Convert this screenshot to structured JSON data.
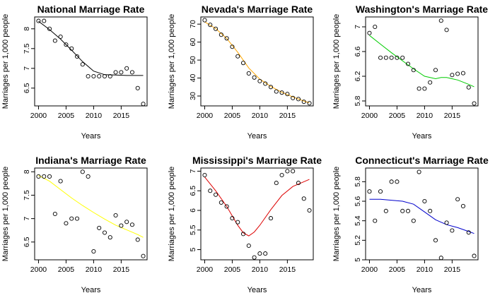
{
  "chart_data": [
    {
      "type": "scatter",
      "title": "National Marriage Rate",
      "xlabel": "Years",
      "ylabel": "Marriages per 1,000 people",
      "xlim": [
        1999.3,
        2019.7
      ],
      "ylim": [
        6.05,
        8.3
      ],
      "xticks": [
        2000,
        2005,
        2010,
        2015
      ],
      "yticks": [
        6.5,
        7.0,
        7.5,
        8.0
      ],
      "trend_color": "#000000",
      "x": [
        2000,
        2001,
        2002,
        2003,
        2004,
        2005,
        2006,
        2007,
        2008,
        2009,
        2010,
        2011,
        2012,
        2013,
        2014,
        2015,
        2016,
        2017,
        2018,
        2019
      ],
      "y": [
        8.2,
        8.2,
        8.0,
        7.7,
        7.8,
        7.6,
        7.5,
        7.3,
        7.1,
        6.8,
        6.8,
        6.8,
        6.8,
        6.8,
        6.9,
        6.9,
        7.0,
        6.9,
        6.5,
        6.1
      ],
      "trend": [
        [
          2000,
          8.19
        ],
        [
          2002,
          7.98
        ],
        [
          2004,
          7.74
        ],
        [
          2006,
          7.46
        ],
        [
          2008,
          7.17
        ],
        [
          2010,
          6.93
        ],
        [
          2012,
          6.84
        ],
        [
          2014,
          6.83
        ],
        [
          2016,
          6.82
        ],
        [
          2018,
          6.82
        ],
        [
          2019,
          6.82
        ]
      ]
    },
    {
      "type": "scatter",
      "title": "Nevada's Marriage Rate",
      "xlabel": "Years",
      "ylabel": "Marriages per 1,000 people",
      "xlim": [
        1999.3,
        2019.7
      ],
      "ylim": [
        24.5,
        74
      ],
      "xticks": [
        2000,
        2005,
        2010,
        2015
      ],
      "yticks": [
        30,
        40,
        50,
        60,
        70
      ],
      "trend_color": "#ffa500",
      "x": [
        2000,
        2001,
        2002,
        2003,
        2004,
        2005,
        2006,
        2007,
        2008,
        2009,
        2010,
        2011,
        2012,
        2013,
        2014,
        2015,
        2016,
        2017,
        2018,
        2019
      ],
      "y": [
        72.2,
        69.6,
        67.4,
        64.1,
        62.1,
        57.4,
        52.1,
        48.4,
        42.6,
        40.3,
        38.3,
        36.9,
        35.0,
        32.5,
        31.9,
        31.1,
        28.9,
        28.3,
        26.8,
        26.0
      ],
      "trend": [
        [
          2000,
          71.3
        ],
        [
          2002,
          67.5
        ],
        [
          2004,
          62.0
        ],
        [
          2006,
          54.3
        ],
        [
          2008,
          45.6
        ],
        [
          2010,
          39.4
        ],
        [
          2012,
          35.3
        ],
        [
          2014,
          32.1
        ],
        [
          2016,
          29.5
        ],
        [
          2018,
          27.2
        ],
        [
          2019,
          26.2
        ]
      ]
    },
    {
      "type": "scatter",
      "title": "Washington's Marriage Rate",
      "xlabel": "Years",
      "ylabel": "Marriages per 1,000 people",
      "xlim": [
        1999.3,
        2019.7
      ],
      "ylim": [
        5.72,
        7.16
      ],
      "xticks": [
        2000,
        2005,
        2010,
        2015
      ],
      "yticks": [
        5.8,
        6.2,
        6.6,
        7.0
      ],
      "trend_color": "#00cc00",
      "x": [
        2000,
        2001,
        2002,
        2003,
        2004,
        2005,
        2006,
        2007,
        2008,
        2009,
        2010,
        2011,
        2012,
        2013,
        2014,
        2015,
        2016,
        2017,
        2018,
        2019
      ],
      "y": [
        6.9,
        7.0,
        6.5,
        6.5,
        6.5,
        6.5,
        6.5,
        6.4,
        6.3,
        6.0,
        6.0,
        6.1,
        6.3,
        7.1,
        6.95,
        6.22,
        6.24,
        6.25,
        6.02,
        5.76
      ],
      "trend": [
        [
          2000,
          6.86
        ],
        [
          2002,
          6.72
        ],
        [
          2004,
          6.58
        ],
        [
          2006,
          6.45
        ],
        [
          2008,
          6.32
        ],
        [
          2010,
          6.2
        ],
        [
          2012,
          6.16
        ],
        [
          2013,
          6.18
        ],
        [
          2014,
          6.18
        ],
        [
          2016,
          6.14
        ],
        [
          2018,
          6.07
        ],
        [
          2019,
          6.03
        ]
      ]
    },
    {
      "type": "scatter",
      "title": "Indiana's Marriage Rate",
      "xlabel": "Years",
      "ylabel": "Marriages per 1,000 people",
      "xlim": [
        1999.3,
        2019.7
      ],
      "ylim": [
        6.12,
        8.08
      ],
      "xticks": [
        2000,
        2005,
        2010,
        2015
      ],
      "yticks": [
        6.5,
        7.0,
        7.5,
        8.0
      ],
      "trend_color": "#ffff00",
      "x": [
        2000,
        2001,
        2002,
        2003,
        2004,
        2005,
        2006,
        2007,
        2008,
        2009,
        2010,
        2011,
        2012,
        2013,
        2014,
        2015,
        2016,
        2017,
        2018,
        2019
      ],
      "y": [
        7.9,
        7.9,
        7.9,
        7.1,
        7.8,
        6.9,
        7.0,
        7.0,
        8.0,
        7.9,
        6.3,
        6.8,
        6.7,
        6.6,
        7.07,
        6.85,
        6.93,
        6.87,
        6.55,
        6.2
      ],
      "trend": [
        [
          2000,
          7.92
        ],
        [
          2002,
          7.8
        ],
        [
          2004,
          7.62
        ],
        [
          2006,
          7.44
        ],
        [
          2008,
          7.28
        ],
        [
          2010,
          7.13
        ],
        [
          2012,
          6.99
        ],
        [
          2014,
          6.86
        ],
        [
          2016,
          6.76
        ],
        [
          2018,
          6.66
        ],
        [
          2019,
          6.6
        ]
      ]
    },
    {
      "type": "scatter",
      "title": "Mississippi's Marriage Rate",
      "xlabel": "Years",
      "ylabel": "Marriages per 1,000 people",
      "xlim": [
        1999.3,
        2019.7
      ],
      "ylim": [
        4.74,
        7.08
      ],
      "xticks": [
        2000,
        2005,
        2010,
        2015
      ],
      "yticks": [
        5.0,
        5.5,
        6.0,
        6.5,
        7.0
      ],
      "trend_color": "#dd0000",
      "x": [
        2000,
        2001,
        2002,
        2003,
        2004,
        2005,
        2006,
        2007,
        2008,
        2009,
        2010,
        2011,
        2012,
        2013,
        2014,
        2015,
        2016,
        2017,
        2018,
        2019
      ],
      "y": [
        6.9,
        6.5,
        6.4,
        6.2,
        6.1,
        5.8,
        5.7,
        5.4,
        5.1,
        4.8,
        4.9,
        4.9,
        5.8,
        6.7,
        6.9,
        7.0,
        7.0,
        6.7,
        6.3,
        6.0
      ],
      "trend": [
        [
          2000,
          6.85
        ],
        [
          2002,
          6.5
        ],
        [
          2004,
          6.1
        ],
        [
          2006,
          5.62
        ],
        [
          2007,
          5.43
        ],
        [
          2008,
          5.35
        ],
        [
          2009,
          5.45
        ],
        [
          2010,
          5.62
        ],
        [
          2012,
          6.02
        ],
        [
          2014,
          6.38
        ],
        [
          2016,
          6.61
        ],
        [
          2018,
          6.73
        ],
        [
          2019,
          6.79
        ]
      ]
    },
    {
      "type": "scatter",
      "title": "Connecticut's Marriage Rate",
      "xlabel": "Years",
      "ylabel": "Marriages per 1,000 people",
      "xlim": [
        1999.3,
        2019.7
      ],
      "ylim": [
        5.0,
        5.94
      ],
      "xticks": [
        2000,
        2005,
        2010,
        2015
      ],
      "yticks": [
        5.0,
        5.2,
        5.4,
        5.6,
        5.8
      ],
      "trend_color": "#0000cc",
      "x": [
        2000,
        2001,
        2002,
        2003,
        2004,
        2005,
        2006,
        2007,
        2008,
        2009,
        2010,
        2011,
        2012,
        2013,
        2014,
        2015,
        2016,
        2017,
        2018,
        2019
      ],
      "y": [
        5.7,
        5.4,
        5.7,
        5.5,
        5.8,
        5.8,
        5.5,
        5.5,
        5.4,
        5.9,
        5.6,
        5.5,
        5.2,
        5.02,
        5.38,
        5.3,
        5.62,
        5.55,
        5.28,
        5.04
      ],
      "trend": [
        [
          2000,
          5.62
        ],
        [
          2002,
          5.62
        ],
        [
          2004,
          5.61
        ],
        [
          2006,
          5.6
        ],
        [
          2008,
          5.57
        ],
        [
          2010,
          5.49
        ],
        [
          2012,
          5.41
        ],
        [
          2014,
          5.36
        ],
        [
          2016,
          5.33
        ],
        [
          2018,
          5.29
        ],
        [
          2019,
          5.27
        ]
      ]
    }
  ]
}
